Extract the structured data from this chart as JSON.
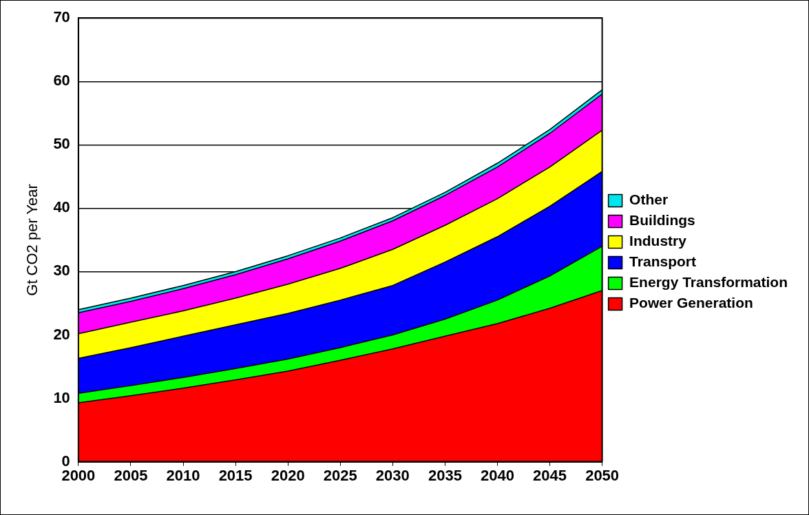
{
  "chart_data": {
    "type": "area",
    "stacked": true,
    "ylabel": "Gt CO2 per Year",
    "x": [
      2000,
      2005,
      2010,
      2015,
      2020,
      2025,
      2030,
      2035,
      2040,
      2045,
      2050
    ],
    "xlim": [
      2000,
      2050
    ],
    "xticks": [
      2000,
      2005,
      2010,
      2015,
      2020,
      2025,
      2030,
      2035,
      2040,
      2045,
      2050
    ],
    "ylim": [
      0,
      70
    ],
    "yticks": [
      0,
      10,
      20,
      30,
      40,
      50,
      60,
      70
    ],
    "grid": "y",
    "legend": "right",
    "series": [
      {
        "name": "Power Generation",
        "color": "#ff0000",
        "values": [
          9.3,
          10.4,
          11.6,
          12.9,
          14.3,
          16.0,
          17.8,
          19.8,
          21.8,
          24.2,
          27.0
        ]
      },
      {
        "name": "Energy Transformation",
        "color": "#00ff00",
        "values": [
          1.5,
          1.6,
          1.7,
          1.8,
          1.9,
          2.0,
          2.2,
          2.7,
          3.7,
          5.1,
          7.0
        ]
      },
      {
        "name": "Transport",
        "color": "#0000ff",
        "values": [
          5.5,
          6.0,
          6.5,
          6.9,
          7.2,
          7.5,
          7.8,
          9.0,
          10.0,
          11.0,
          11.8
        ]
      },
      {
        "name": "Industry",
        "color": "#ffff00",
        "values": [
          3.9,
          4.0,
          4.0,
          4.2,
          4.6,
          5.0,
          5.7,
          5.8,
          6.0,
          6.2,
          6.5
        ]
      },
      {
        "name": "Buildings",
        "color": "#ff00ff",
        "values": [
          3.3,
          3.3,
          3.5,
          3.7,
          4.0,
          4.3,
          4.5,
          4.7,
          5.0,
          5.3,
          5.7
        ]
      },
      {
        "name": "Other",
        "color": "#00e5ee",
        "values": [
          0.5,
          0.5,
          0.5,
          0.5,
          0.5,
          0.5,
          0.5,
          0.5,
          0.6,
          0.6,
          0.7
        ]
      }
    ]
  }
}
